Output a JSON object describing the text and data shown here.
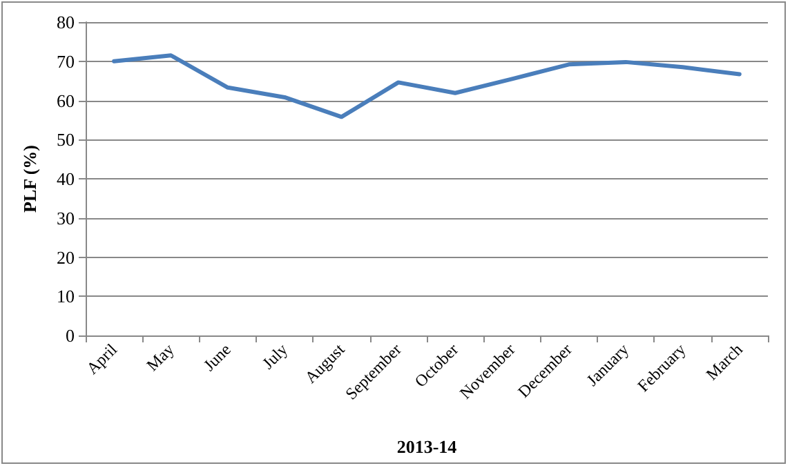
{
  "chart_data": {
    "type": "line",
    "xlabel": "2013-14",
    "ylabel": "PLF (%)",
    "categories": [
      "April",
      "May",
      "June",
      "July",
      "August",
      "September",
      "October",
      "November",
      "December",
      "January",
      "February",
      "March"
    ],
    "series": [
      {
        "color": "#4a7ebb",
        "values": [
          70,
          71.5,
          63.3,
          60.8,
          55.8,
          64.6,
          61.9,
          65.5,
          69.2,
          69.8,
          68.5,
          66.7
        ]
      }
    ],
    "ylim": [
      0,
      80
    ],
    "yticks": [
      0,
      10,
      20,
      30,
      40,
      50,
      60,
      70,
      80
    ],
    "grid": "y",
    "marker": "none",
    "line_style": "solid"
  }
}
